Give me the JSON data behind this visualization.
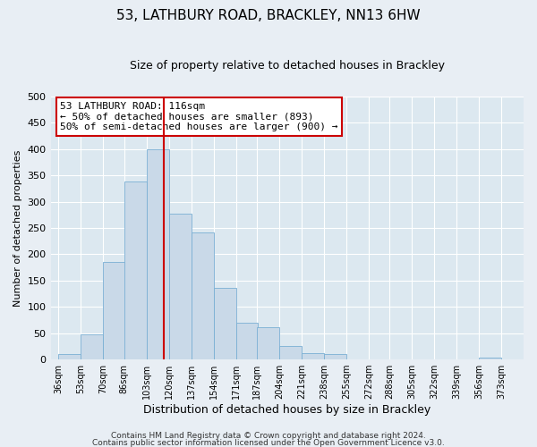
{
  "title": "53, LATHBURY ROAD, BRACKLEY, NN13 6HW",
  "subtitle": "Size of property relative to detached houses in Brackley",
  "xlabel": "Distribution of detached houses by size in Brackley",
  "ylabel": "Number of detached properties",
  "bar_left_edges": [
    36,
    53,
    70,
    86,
    103,
    120,
    137,
    154,
    171,
    187,
    204,
    221,
    238,
    255,
    272,
    288,
    305,
    322,
    339,
    356
  ],
  "bar_heights": [
    10,
    47,
    185,
    338,
    400,
    278,
    242,
    137,
    70,
    62,
    25,
    12,
    10,
    0,
    0,
    0,
    0,
    0,
    0,
    3
  ],
  "bin_width": 17,
  "bar_color": "#c9d9e8",
  "bar_edge_color": "#7aafd4",
  "vline_x": 116,
  "vline_color": "#cc0000",
  "ylim": [
    0,
    500
  ],
  "yticks": [
    0,
    50,
    100,
    150,
    200,
    250,
    300,
    350,
    400,
    450,
    500
  ],
  "xtick_labels": [
    "36sqm",
    "53sqm",
    "70sqm",
    "86sqm",
    "103sqm",
    "120sqm",
    "137sqm",
    "154sqm",
    "171sqm",
    "187sqm",
    "204sqm",
    "221sqm",
    "238sqm",
    "255sqm",
    "272sqm",
    "288sqm",
    "305sqm",
    "322sqm",
    "339sqm",
    "356sqm",
    "373sqm"
  ],
  "xtick_positions": [
    36,
    53,
    70,
    86,
    103,
    120,
    137,
    154,
    171,
    187,
    204,
    221,
    238,
    255,
    272,
    288,
    305,
    322,
    339,
    356,
    373
  ],
  "annotation_title": "53 LATHBURY ROAD: 116sqm",
  "annotation_line1": "← 50% of detached houses are smaller (893)",
  "annotation_line2": "50% of semi-detached houses are larger (900) →",
  "annotation_box_color": "#ffffff",
  "annotation_box_edge": "#cc0000",
  "footer_line1": "Contains HM Land Registry data © Crown copyright and database right 2024.",
  "footer_line2": "Contains public sector information licensed under the Open Government Licence v3.0.",
  "fig_bg_color": "#e8eef4",
  "plot_bg_color": "#dce8f0",
  "grid_color": "#ffffff",
  "title_fontsize": 11,
  "subtitle_fontsize": 9,
  "xlabel_fontsize": 9,
  "ylabel_fontsize": 8,
  "footer_fontsize": 6.5,
  "annotation_fontsize": 8
}
